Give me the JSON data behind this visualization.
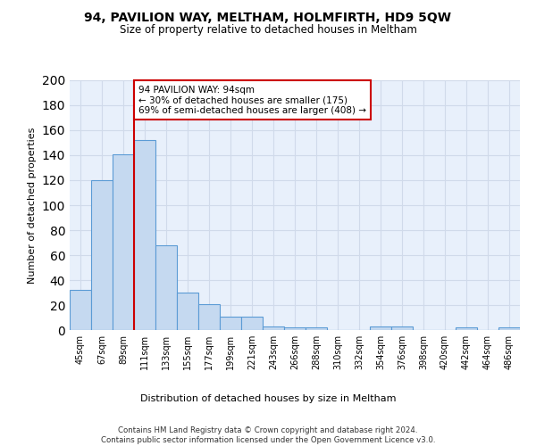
{
  "title1": "94, PAVILION WAY, MELTHAM, HOLMFIRTH, HD9 5QW",
  "title2": "Size of property relative to detached houses in Meltham",
  "xlabel": "Distribution of detached houses by size in Meltham",
  "ylabel": "Number of detached properties",
  "bar_color": "#c5d9f0",
  "bar_edge_color": "#5b9bd5",
  "bin_labels": [
    "45sqm",
    "67sqm",
    "89sqm",
    "111sqm",
    "133sqm",
    "155sqm",
    "177sqm",
    "199sqm",
    "221sqm",
    "243sqm",
    "266sqm",
    "288sqm",
    "310sqm",
    "332sqm",
    "354sqm",
    "376sqm",
    "398sqm",
    "420sqm",
    "442sqm",
    "464sqm",
    "486sqm"
  ],
  "bar_values": [
    32,
    120,
    141,
    152,
    68,
    30,
    21,
    11,
    11,
    3,
    2,
    2,
    0,
    0,
    3,
    3,
    0,
    0,
    2,
    0,
    2
  ],
  "vline_x": 2.5,
  "vline_color": "#cc0000",
  "annotation_line1": "94 PAVILION WAY: 94sqm",
  "annotation_line2": "← 30% of detached houses are smaller (175)",
  "annotation_line3": "69% of semi-detached houses are larger (408) →",
  "annotation_box_color": "#ffffff",
  "annotation_box_edge": "#cc0000",
  "ylim": [
    0,
    200
  ],
  "yticks": [
    0,
    20,
    40,
    60,
    80,
    100,
    120,
    140,
    160,
    180,
    200
  ],
  "background_color": "#e8f0fb",
  "footer_line1": "Contains HM Land Registry data © Crown copyright and database right 2024.",
  "footer_line2": "Contains public sector information licensed under the Open Government Licence v3.0.",
  "grid_color": "#d0daea"
}
